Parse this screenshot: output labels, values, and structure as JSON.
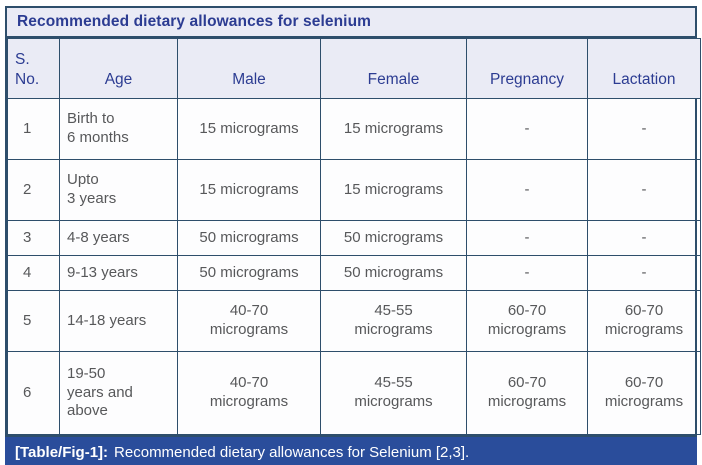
{
  "colors": {
    "border": "#2e4e6b",
    "header_bg": "#eaebf5",
    "header_text": "#2c3c92",
    "body_text": "#57585a",
    "caption_bg": "#2a4d9b",
    "caption_text": "#ffffff"
  },
  "table": {
    "title": "Recommended dietary allowances for selenium",
    "columns": {
      "no": "S.\nNo.",
      "age": "Age",
      "male": "Male",
      "female": "Female",
      "pregnancy": "Pregnancy",
      "lactation": "Lactation"
    },
    "rows": [
      {
        "no": "1",
        "age": "Birth to\n6 months",
        "male": "15 micrograms",
        "female": "15 micrograms",
        "pregnancy": "-",
        "lactation": "-"
      },
      {
        "no": "2",
        "age": "Upto\n3 years",
        "male": "15 micrograms",
        "female": "15 micrograms",
        "pregnancy": "-",
        "lactation": "-"
      },
      {
        "no": "3",
        "age": "4-8 years",
        "male": "50 micrograms",
        "female": "50 micrograms",
        "pregnancy": "-",
        "lactation": "-"
      },
      {
        "no": "4",
        "age": "9-13 years",
        "male": "50 micrograms",
        "female": "50 micrograms",
        "pregnancy": "-",
        "lactation": "-"
      },
      {
        "no": "5",
        "age": "14-18 years",
        "male": "40-70\nmicrograms",
        "female": "45-55\nmicrograms",
        "pregnancy": "60-70\nmicrograms",
        "lactation": "60-70\nmicrograms"
      },
      {
        "no": "6",
        "age": "19-50\nyears and\nabove",
        "male": "40-70\nmicrograms",
        "female": "45-55\nmicrograms",
        "pregnancy": "60-70\nmicrograms",
        "lactation": "60-70\nmicrograms"
      }
    ],
    "caption": {
      "label": "[Table/Fig-1]:",
      "text": "Recommended dietary allowances for Selenium [2,3]."
    }
  }
}
